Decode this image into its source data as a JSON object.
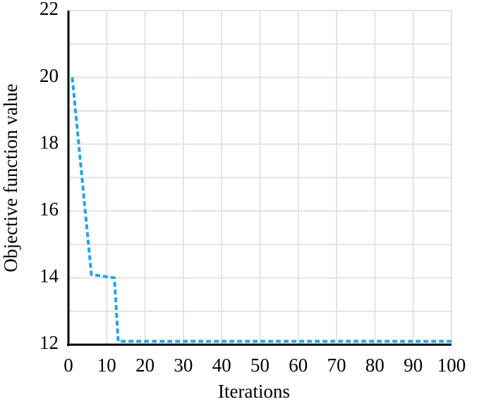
{
  "chart_data": {
    "type": "line",
    "x_label": "Iterations",
    "y_label": "Objective function value",
    "x": [
      1,
      6,
      12,
      13,
      100
    ],
    "series": [
      {
        "color": "#1fa8e3",
        "values": [
          20,
          14.1,
          14.0,
          12.1,
          12.1
        ]
      }
    ],
    "xlim": [
      0,
      100
    ],
    "xticks": [
      0,
      10,
      20,
      30,
      40,
      50,
      60,
      70,
      80,
      90,
      100
    ],
    "ylim": [
      12,
      22
    ],
    "yticks": [
      12,
      14,
      16,
      18,
      20,
      22
    ],
    "yminorticks": [
      13,
      15,
      17,
      19,
      21
    ],
    "grid": true,
    "line_style": "dashed"
  }
}
